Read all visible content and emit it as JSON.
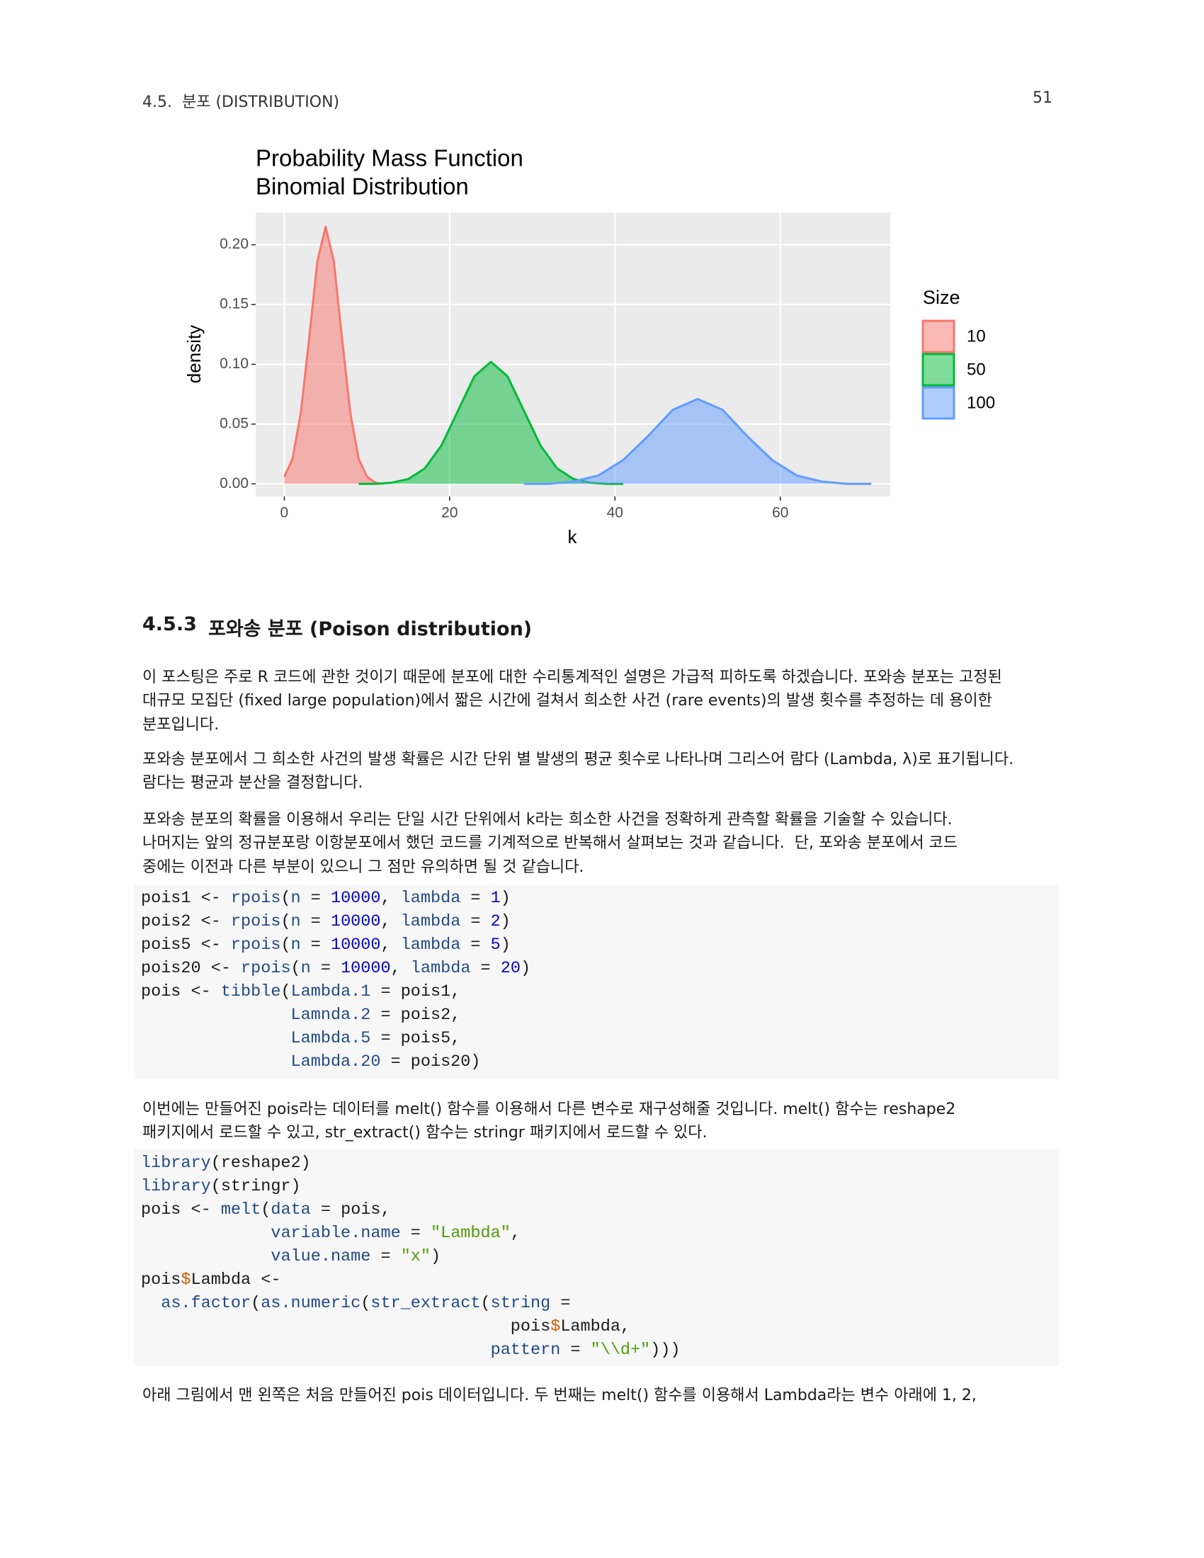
{
  "header": {
    "section": "4.5.  분포 (DISTRIBUTION)",
    "page_number": "51"
  },
  "chart_data": {
    "type": "area",
    "title": "Probability Mass Function",
    "subtitle": "Binomial Distribution",
    "x_label": "k",
    "y_label": "density",
    "legend_title": "Size",
    "legend_position": "right",
    "xlim": [
      -3.46,
      73.3
    ],
    "ylim": [
      -0.0105,
      0.227
    ],
    "xticks": [
      0,
      20,
      40,
      60
    ],
    "yticks": [
      {
        "value": 0,
        "label": "0.00"
      },
      {
        "value": 0.05,
        "label": "0.05"
      },
      {
        "value": 0.1,
        "label": "0.10"
      },
      {
        "value": 0.15,
        "label": "0.15"
      },
      {
        "value": 0.2,
        "label": "0.20"
      }
    ],
    "grid": true,
    "series": [
      {
        "name": "10",
        "color": "#F8766D",
        "x": [
          0,
          1,
          2,
          3,
          4,
          5,
          6,
          7,
          8,
          9,
          10,
          11,
          12
        ],
        "values": [
          0.006,
          0.021,
          0.059,
          0.121,
          0.186,
          0.215,
          0.186,
          0.121,
          0.059,
          0.021,
          0.006,
          0.001,
          0.0
        ]
      },
      {
        "name": "50",
        "color": "#00BA38",
        "x": [
          9,
          11,
          13,
          15,
          17,
          19,
          21,
          23,
          25,
          27,
          29,
          31,
          33,
          35,
          37,
          39,
          41
        ],
        "values": [
          0.0,
          0.0,
          0.001,
          0.004,
          0.013,
          0.032,
          0.061,
          0.09,
          0.102,
          0.09,
          0.061,
          0.032,
          0.013,
          0.004,
          0.001,
          0.0,
          0.0
        ]
      },
      {
        "name": "100",
        "color": "#619CFF",
        "x": [
          29,
          32,
          35,
          38,
          41,
          44,
          47,
          50,
          53,
          56,
          59,
          62,
          65,
          68,
          71
        ],
        "values": [
          0.0,
          0.0,
          0.002,
          0.007,
          0.02,
          0.04,
          0.062,
          0.071,
          0.062,
          0.04,
          0.02,
          0.007,
          0.002,
          0.0,
          0.0
        ]
      }
    ]
  },
  "section": {
    "number": "4.5.3",
    "title": "포와송 분포 (Poison distribution)"
  },
  "paragraphs": [
    {
      "lines": [
        "이 포스팅은 주로 R 코드에 관한 것이기 때문에 분포에 대한 수리통계적인 설명은 가급적 피하도록 하겠습니다. 포와송 분포는 고정된",
        "대규모 모집단 (fixed large population)에서 짧은 시간에 걸쳐서 희소한 사건 (rare events)의 발생 횟수를 추정하는 데 용이한",
        "분포입니다."
      ]
    },
    {
      "lines": [
        "포와송 분포에서 그 희소한 사건의 발생 확률은 시간 단위 별 발생의 평균 횟수로 나타나며 그리스어 람다 (Lambda, λ)로 표기됩니다.",
        "람다는 평균과 분산을 결정합니다."
      ]
    },
    {
      "lines": [
        "포와송 분포의 확률을 이용해서 우리는 단일 시간 단위에서 k라는 희소한 사건을 정확하게 관측할 확률을 기술할 수 있습니다.",
        "나머지는 앞의 정규분포랑 이항분포에서 했던 코드를 기계적으로 반복해서 살펴보는 것과 같습니다.  단, 포와송 분포에서 코드",
        "중에는 이전과 다른 부분이 있으니 그 점만 유의하면 될 것 같습니다."
      ]
    },
    {
      "lines": [
        "이번에는 만들어진 pois라는 데이터를 melt() 함수를 이용해서 다른 변수로 재구성해줄 것입니다. melt() 함수는 reshape2",
        "패키지에서 로드할 수 있고, str_extract() 함수는 stringr 패키지에서 로드할 수 있다."
      ]
    },
    {
      "lines": [
        "아래 그림에서 맨 왼쪽은 처음 만들어진 pois 데이터입니다. 두 번째는 melt() 함수를 이용해서 Lambda라는 변수 아래에 1, 2,"
      ]
    }
  ],
  "code_blocks": [
    {
      "lines": [
        "pois1 <- rpois(n = 10000, lambda = 1)",
        "pois2 <- rpois(n = 10000, lambda = 2)",
        "pois5 <- rpois(n = 10000, lambda = 5)",
        "pois20 <- rpois(n = 10000, lambda = 20)",
        "pois <- tibble(Lambda.1 = pois1,",
        "               Lamnda.2 = pois2,",
        "               Lambda.5 = pois5,",
        "               Lambda.20 = pois20)"
      ]
    },
    {
      "lines": [
        "library(reshape2)",
        "library(stringr)",
        "pois <- melt(data = pois,",
        "             variable.name = \"Lambda\",",
        "             value.name = \"x\")",
        "pois$Lambda <-",
        "  as.factor(as.numeric(str_extract(string =",
        "                                     pois$Lambda,",
        "                                   pattern = \"\\\\d+\")))"
      ]
    }
  ]
}
